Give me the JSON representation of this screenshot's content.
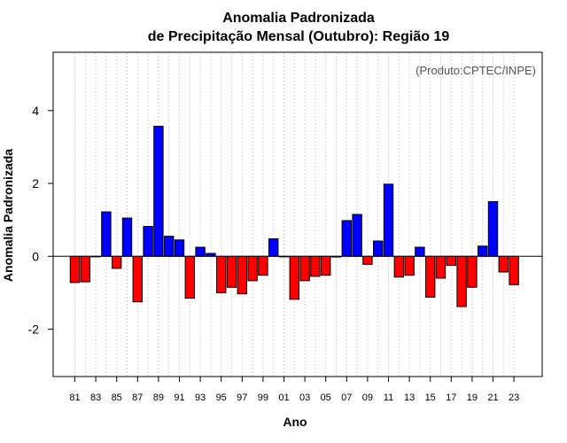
{
  "chart_data": {
    "type": "bar",
    "title": "Anomalia Padronizada",
    "subtitle": "de Precipitação Mensal (Outubro): Região 19",
    "xlabel": "Ano",
    "ylabel": "Anomalia Padronizada",
    "credit": "(Produto:CPTEC/INPE)",
    "ylim": [
      -3.3,
      5.6
    ],
    "yticks": [
      -2,
      0,
      2,
      4
    ],
    "ytick_labels": [
      "-2",
      "0",
      "2",
      "4"
    ],
    "x_tick_labels": [
      "81",
      "83",
      "85",
      "87",
      "89",
      "91",
      "93",
      "95",
      "97",
      "99",
      "01",
      "03",
      "05",
      "07",
      "09",
      "11",
      "13",
      "15",
      "17",
      "19",
      "21",
      "23"
    ],
    "categories": [
      "1981",
      "1982",
      "1983",
      "1984",
      "1985",
      "1986",
      "1987",
      "1988",
      "1989",
      "1990",
      "1991",
      "1992",
      "1993",
      "1994",
      "1995",
      "1996",
      "1997",
      "1998",
      "1999",
      "2000",
      "2001",
      "2002",
      "2003",
      "2004",
      "2005",
      "2006",
      "2007",
      "2008",
      "2009",
      "2010",
      "2011",
      "2012",
      "2013",
      "2014",
      "2015",
      "2016",
      "2017",
      "2018",
      "2019",
      "2020",
      "2021",
      "2022",
      "2023"
    ],
    "values": [
      -0.72,
      -0.7,
      0.0,
      1.22,
      -0.33,
      1.05,
      -1.25,
      0.82,
      3.57,
      0.55,
      0.45,
      -1.15,
      0.25,
      0.08,
      -1.0,
      -0.85,
      -1.03,
      -0.67,
      -0.52,
      0.48,
      0.0,
      -1.18,
      -0.67,
      -0.55,
      -0.52,
      -0.02,
      0.98,
      1.15,
      -0.22,
      0.42,
      1.98,
      -0.57,
      -0.52,
      0.25,
      -1.12,
      -0.6,
      -0.25,
      -1.38,
      -0.85,
      0.28,
      1.5,
      -0.43,
      -0.78
    ],
    "colors": {
      "positive": "#0000ff",
      "negative": "#ff0000"
    },
    "grid": true
  }
}
